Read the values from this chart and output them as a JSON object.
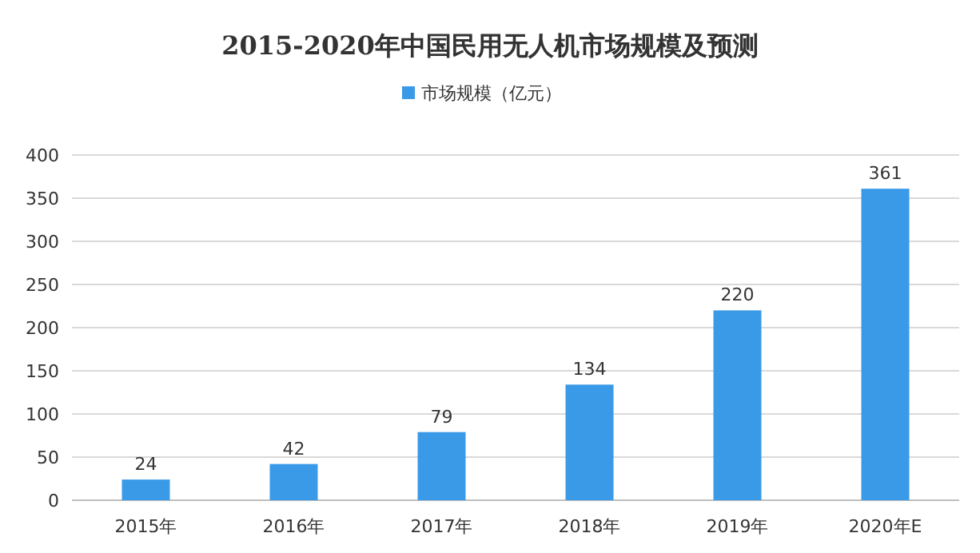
{
  "chart_data": {
    "type": "bar",
    "title": "2015-2020年中国民用无人机市场规模及预测",
    "categories": [
      "2015年",
      "2016年",
      "2017年",
      "2018年",
      "2019年",
      "2020年E"
    ],
    "series": [
      {
        "name": "市场规模（亿元）",
        "color": "#3a9ae8",
        "values": [
          24,
          42,
          79,
          134,
          220,
          361
        ]
      }
    ],
    "ylim": [
      0,
      400
    ],
    "yticks": [
      0,
      50,
      100,
      150,
      200,
      250,
      300,
      350,
      400
    ],
    "grid": "y",
    "legend": "top",
    "data_labels": true
  }
}
